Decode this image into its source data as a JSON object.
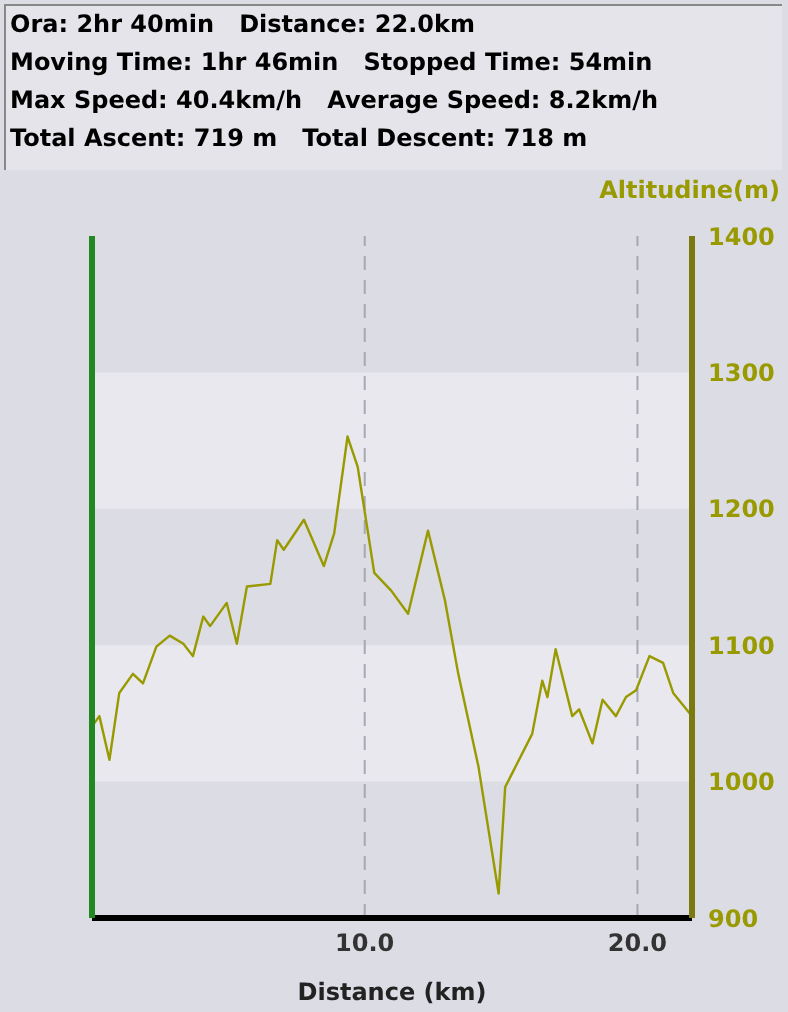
{
  "chart_data": {
    "type": "line",
    "annotations": [
      "Ora: 2hr 40min   Distance: 22.0km",
      "Moving Time: 1hr 46min   Stopped Time: 54min",
      "Max Speed: 40.4km/h   Average Speed: 8.2km/h",
      "Total Ascent: 719 m   Total Descent: 718 m"
    ],
    "xlabel": "Distance (km)",
    "y2label": "Altitudine(m)",
    "x": [
      0.02,
      0.27,
      0.64,
      1.0,
      1.5,
      1.87,
      2.36,
      2.85,
      3.35,
      3.7,
      4.08,
      4.33,
      4.94,
      5.31,
      5.68,
      6.54,
      6.79,
      7.03,
      7.77,
      8.5,
      8.88,
      9.37,
      9.74,
      10.35,
      10.97,
      11.59,
      12.32,
      12.94,
      13.43,
      14.17,
      14.91,
      15.15,
      16.14,
      16.51,
      16.7,
      17.0,
      17.61,
      17.86,
      18.35,
      18.72,
      19.21,
      19.58,
      19.95,
      20.44,
      20.94,
      21.31,
      21.92
    ],
    "series": [
      {
        "color": "#999900",
        "axis": "y2",
        "values": [
          1041,
          1048,
          1016,
          1065,
          1079,
          1072,
          1099,
          1107,
          1101,
          1092,
          1121,
          1114,
          1131,
          1101,
          1143,
          1145,
          1177,
          1170,
          1192,
          1158,
          1182,
          1253,
          1231,
          1153,
          1140,
          1123,
          1184,
          1133,
          1079,
          1011,
          918,
          996,
          1035,
          1074,
          1062,
          1097,
          1048,
          1053,
          1028,
          1060,
          1048,
          1062,
          1067,
          1092,
          1087,
          1065,
          1050
        ]
      }
    ],
    "xlim": [
      0,
      22
    ],
    "xticks": [
      {
        "value": 10,
        "label": "10.0"
      },
      {
        "value": 20,
        "label": "20.0"
      }
    ],
    "y2lim": [
      900,
      1400
    ],
    "y2ticks": [
      900,
      1000,
      1100,
      1200,
      1300,
      1400
    ],
    "grid": true,
    "marker": "none",
    "line_style": "solid"
  }
}
